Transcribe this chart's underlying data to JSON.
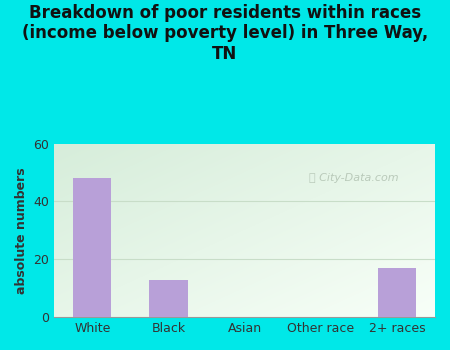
{
  "title": "Breakdown of poor residents within races\n(income below poverty level) in Three Way,\nTN",
  "categories": [
    "White",
    "Black",
    "Asian",
    "Other race",
    "2+ races"
  ],
  "values": [
    48,
    13,
    0,
    0,
    17
  ],
  "bar_color": "#b8a0d8",
  "ylabel": "absolute numbers",
  "ylim": [
    0,
    60
  ],
  "yticks": [
    0,
    20,
    40,
    60
  ],
  "bg_color": "#00e8e8",
  "plot_bg_topleft": "#d6edda",
  "plot_bg_bottomright": "#f0faf0",
  "grid_color": "#ccddcc",
  "title_fontsize": 12,
  "axis_label_fontsize": 9,
  "tick_fontsize": 9,
  "watermark": "City-Data.com"
}
